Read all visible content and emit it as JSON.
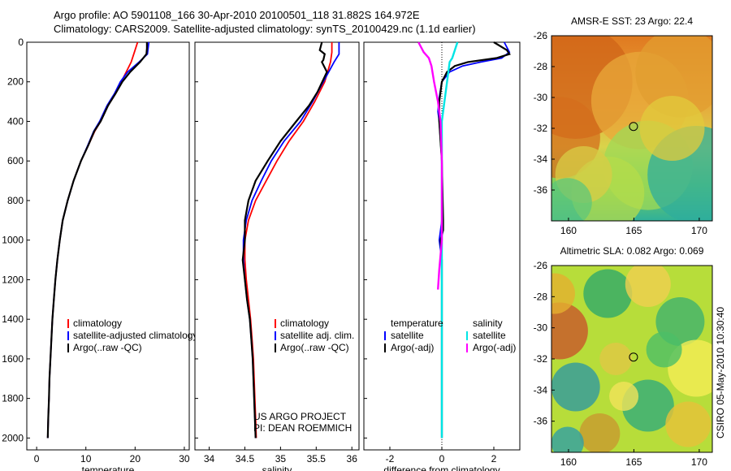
{
  "header": {
    "line1": "Argo profile: AO 5901108_166 30-Apr-2010 20100501_118 31.882S 164.972E",
    "line2": "Climatology: CARS2009. Satellite-adjusted climatology: synTS_20100429.nc (1.1d earlier)"
  },
  "side_label": "CSIRO 05-May-2010 10:30:40",
  "colors": {
    "climatology": "#ff0000",
    "satellite": "#0000ff",
    "argo": "#000000",
    "sat_sal": "#00e5e5",
    "argo_sal": "#ff00ff"
  },
  "chart_data": [
    {
      "type": "line",
      "id": "temperature",
      "xlabel": "temperature",
      "xlim": [
        -2,
        31
      ],
      "xticks": [
        0,
        10,
        20,
        30
      ],
      "ylim": [
        2060,
        0
      ],
      "yticks": [
        0,
        200,
        400,
        600,
        800,
        1000,
        1200,
        1400,
        1600,
        1800,
        2000
      ],
      "legend": [
        "climatology",
        "satellite-adjusted climatology",
        "Argo(..raw -QC)"
      ],
      "series": [
        {
          "name": "climatology",
          "color": "#ff0000",
          "points": [
            [
              20.5,
              0
            ],
            [
              20.0,
              40
            ],
            [
              19.2,
              100
            ],
            [
              18.2,
              150
            ],
            [
              17.2,
              200
            ],
            [
              16.0,
              260
            ],
            [
              14.5,
              320
            ],
            [
              13.0,
              400
            ],
            [
              11.8,
              450
            ],
            [
              10.5,
              520
            ],
            [
              9.0,
              600
            ],
            [
              7.5,
              700
            ],
            [
              6.3,
              800
            ],
            [
              5.3,
              900
            ],
            [
              4.7,
              1000
            ],
            [
              4.2,
              1100
            ],
            [
              3.8,
              1200
            ],
            [
              3.5,
              1300
            ],
            [
              3.2,
              1400
            ],
            [
              3.0,
              1500
            ],
            [
              2.8,
              1600
            ],
            [
              2.6,
              1700
            ],
            [
              2.5,
              1800
            ],
            [
              2.35,
              1900
            ],
            [
              2.25,
              2000
            ]
          ]
        },
        {
          "name": "satellite-adjusted climatology",
          "color": "#0000ff",
          "points": [
            [
              22.8,
              0
            ],
            [
              22.6,
              40
            ],
            [
              22.5,
              60
            ],
            [
              20.8,
              100
            ],
            [
              18.5,
              150
            ],
            [
              17.0,
              200
            ],
            [
              15.8,
              260
            ],
            [
              14.3,
              320
            ],
            [
              12.8,
              400
            ],
            [
              11.6,
              450
            ],
            [
              10.4,
              520
            ],
            [
              9.0,
              600
            ],
            [
              7.5,
              700
            ],
            [
              6.3,
              800
            ],
            [
              5.3,
              900
            ],
            [
              4.7,
              1000
            ],
            [
              4.2,
              1100
            ],
            [
              3.8,
              1200
            ],
            [
              3.5,
              1300
            ],
            [
              3.2,
              1400
            ],
            [
              3.0,
              1500
            ],
            [
              2.8,
              1600
            ],
            [
              2.6,
              1700
            ],
            [
              2.5,
              1800
            ],
            [
              2.35,
              1900
            ],
            [
              2.25,
              2000
            ]
          ]
        },
        {
          "name": "Argo(..raw -QC)",
          "color": "#000000",
          "points": [
            [
              22.4,
              0
            ],
            [
              22.4,
              30
            ],
            [
              22.3,
              60
            ],
            [
              21.0,
              100
            ],
            [
              19.0,
              150
            ],
            [
              17.4,
              200
            ],
            [
              16.0,
              260
            ],
            [
              14.5,
              320
            ],
            [
              13.0,
              400
            ],
            [
              11.7,
              450
            ],
            [
              10.5,
              520
            ],
            [
              9.0,
              600
            ],
            [
              7.5,
              700
            ],
            [
              6.3,
              800
            ],
            [
              5.3,
              900
            ],
            [
              4.7,
              1000
            ],
            [
              4.2,
              1100
            ],
            [
              3.8,
              1200
            ],
            [
              3.5,
              1300
            ],
            [
              3.2,
              1400
            ],
            [
              3.0,
              1500
            ],
            [
              2.8,
              1600
            ],
            [
              2.6,
              1700
            ],
            [
              2.5,
              1800
            ],
            [
              2.35,
              1900
            ],
            [
              2.25,
              2000
            ]
          ]
        }
      ]
    },
    {
      "type": "line",
      "id": "salinity",
      "xlabel": "salinity",
      "xlim": [
        33.8,
        36.1
      ],
      "xticks": [
        34,
        34.5,
        35,
        35.5,
        36
      ],
      "ylim": [
        2060,
        0
      ],
      "legend": [
        "climatology",
        "satellite adj. clim.",
        "Argo(..raw -QC)"
      ],
      "annotations": [
        "US ARGO PROJECT",
        "PI: DEAN ROEMMICH"
      ],
      "series": [
        {
          "name": "climatology",
          "color": "#ff0000",
          "points": [
            [
              35.72,
              0
            ],
            [
              35.72,
              50
            ],
            [
              35.7,
              100
            ],
            [
              35.62,
              200
            ],
            [
              35.48,
              300
            ],
            [
              35.32,
              400
            ],
            [
              35.12,
              500
            ],
            [
              34.95,
              600
            ],
            [
              34.8,
              700
            ],
            [
              34.65,
              800
            ],
            [
              34.55,
              900
            ],
            [
              34.5,
              1000
            ],
            [
              34.5,
              1100
            ],
            [
              34.52,
              1200
            ],
            [
              34.55,
              1300
            ],
            [
              34.58,
              1400
            ],
            [
              34.6,
              1500
            ],
            [
              34.62,
              1600
            ],
            [
              34.63,
              1700
            ],
            [
              34.64,
              1800
            ],
            [
              34.65,
              1900
            ],
            [
              34.66,
              2000
            ]
          ]
        },
        {
          "name": "satellite adj. clim.",
          "color": "#0000ff",
          "points": [
            [
              35.82,
              0
            ],
            [
              35.82,
              60
            ],
            [
              35.75,
              100
            ],
            [
              35.6,
              200
            ],
            [
              35.45,
              300
            ],
            [
              35.28,
              400
            ],
            [
              35.05,
              500
            ],
            [
              34.87,
              600
            ],
            [
              34.73,
              700
            ],
            [
              34.6,
              800
            ],
            [
              34.52,
              900
            ],
            [
              34.48,
              1000
            ],
            [
              34.48,
              1100
            ],
            [
              34.5,
              1200
            ],
            [
              34.53,
              1300
            ],
            [
              34.57,
              1400
            ],
            [
              34.59,
              1500
            ],
            [
              34.61,
              1600
            ],
            [
              34.62,
              1700
            ],
            [
              34.63,
              1800
            ],
            [
              34.64,
              1900
            ],
            [
              34.65,
              2000
            ]
          ]
        },
        {
          "name": "Argo(..raw -QC)",
          "color": "#000000",
          "points": [
            [
              35.58,
              0
            ],
            [
              35.55,
              40
            ],
            [
              35.62,
              60
            ],
            [
              35.6,
              90
            ],
            [
              35.58,
              100
            ],
            [
              35.65,
              150
            ],
            [
              35.52,
              250
            ],
            [
              35.4,
              320
            ],
            [
              35.22,
              400
            ],
            [
              35.0,
              500
            ],
            [
              34.82,
              600
            ],
            [
              34.65,
              700
            ],
            [
              34.55,
              800
            ],
            [
              34.5,
              900
            ],
            [
              34.5,
              1000
            ],
            [
              34.47,
              1100
            ],
            [
              34.5,
              1200
            ],
            [
              34.53,
              1300
            ],
            [
              34.57,
              1400
            ],
            [
              34.59,
              1500
            ],
            [
              34.61,
              1600
            ],
            [
              34.62,
              1700
            ],
            [
              34.63,
              1800
            ],
            [
              34.64,
              1900
            ],
            [
              34.65,
              2000
            ]
          ]
        }
      ]
    },
    {
      "type": "line",
      "id": "difference",
      "xlabel": "difference from climatology",
      "xlim": [
        -3,
        3
      ],
      "xticks": [
        -2,
        0,
        2
      ],
      "ylim": [
        2060,
        0
      ],
      "legend_left_title": "temperature",
      "legend_right_title": "salinity",
      "legend": [
        "satellite",
        "Argo(-adj)",
        "satellite",
        "Argo(-adj)"
      ],
      "series": [
        {
          "name": "satellite",
          "group": "temperature",
          "color": "#0000ff",
          "points": [
            [
              2.4,
              0
            ],
            [
              2.6,
              50
            ],
            [
              2.3,
              80
            ],
            [
              1.5,
              100
            ],
            [
              0.8,
              120
            ],
            [
              0.3,
              150
            ],
            [
              0.0,
              200
            ],
            [
              -0.1,
              280
            ],
            [
              -0.15,
              350
            ],
            [
              -0.1,
              400
            ],
            [
              -0.05,
              500
            ],
            [
              0.0,
              600
            ],
            [
              0.0,
              800
            ],
            [
              0.0,
              900
            ],
            [
              -0.05,
              950
            ],
            [
              -0.1,
              1000
            ],
            [
              0.0,
              1100
            ],
            [
              0.0,
              1200
            ],
            [
              0.0,
              1400
            ],
            [
              0.0,
              1600
            ],
            [
              0.0,
              1800
            ],
            [
              0.0,
              2000
            ]
          ]
        },
        {
          "name": "Argo(-adj)",
          "group": "temperature",
          "color": "#000000",
          "points": [
            [
              2.0,
              0
            ],
            [
              2.5,
              40
            ],
            [
              2.6,
              60
            ],
            [
              2.1,
              80
            ],
            [
              1.0,
              100
            ],
            [
              0.5,
              120
            ],
            [
              0.2,
              150
            ],
            [
              0.0,
              200
            ],
            [
              -0.1,
              300
            ],
            [
              -0.1,
              400
            ],
            [
              -0.05,
              500
            ],
            [
              0.0,
              600
            ],
            [
              0.05,
              900
            ],
            [
              0.05,
              950
            ],
            [
              -0.05,
              1000
            ],
            [
              0.0,
              1100
            ],
            [
              0.0,
              1200
            ],
            [
              0.0,
              1400
            ],
            [
              0.0,
              1600
            ],
            [
              0.0,
              1800
            ],
            [
              0.0,
              2000
            ]
          ]
        },
        {
          "name": "satellite",
          "group": "salinity",
          "color": "#00e5e5",
          "points": [
            [
              0.6,
              0
            ],
            [
              0.5,
              40
            ],
            [
              0.4,
              80
            ],
            [
              0.3,
              100
            ],
            [
              0.1,
              300
            ],
            [
              0.0,
              400
            ],
            [
              0.0,
              600
            ],
            [
              0.0,
              800
            ],
            [
              0.0,
              1000
            ],
            [
              0.0,
              1200
            ],
            [
              0.0,
              1400
            ],
            [
              0.0,
              1600
            ],
            [
              0.0,
              1800
            ],
            [
              0.0,
              2000
            ]
          ]
        },
        {
          "name": "Argo(-adj)",
          "group": "salinity",
          "color": "#ff00ff",
          "points": [
            [
              -0.9,
              0
            ],
            [
              -0.7,
              50
            ],
            [
              -0.5,
              80
            ],
            [
              -0.4,
              120
            ],
            [
              -0.3,
              200
            ],
            [
              -0.15,
              300
            ],
            [
              -0.05,
              400
            ],
            [
              0.0,
              600
            ],
            [
              0.0,
              800
            ],
            [
              0.0,
              1000
            ],
            [
              -0.1,
              1150
            ],
            [
              -0.15,
              1250
            ]
          ]
        }
      ]
    },
    {
      "type": "heatmap",
      "id": "sst_map",
      "title": "AMSR-E SST: 23 Argo: 22.4",
      "xlim": [
        158.7,
        171
      ],
      "ylim": [
        -38,
        -26
      ],
      "xticks": [
        160,
        165,
        170
      ],
      "yticks": [
        -26,
        -28,
        -30,
        -32,
        -34,
        -36
      ],
      "marker": [
        164.97,
        -31.88
      ]
    },
    {
      "type": "heatmap",
      "id": "sla_map",
      "title": "Altimetric SLA: 0.082 Argo: 0.069",
      "xlim": [
        158.7,
        171
      ],
      "ylim": [
        -38,
        -26
      ],
      "xticks": [
        160,
        165,
        170
      ],
      "yticks": [
        -26,
        -28,
        -30,
        -32,
        -34,
        -36
      ],
      "marker": [
        164.97,
        -31.88
      ]
    }
  ]
}
